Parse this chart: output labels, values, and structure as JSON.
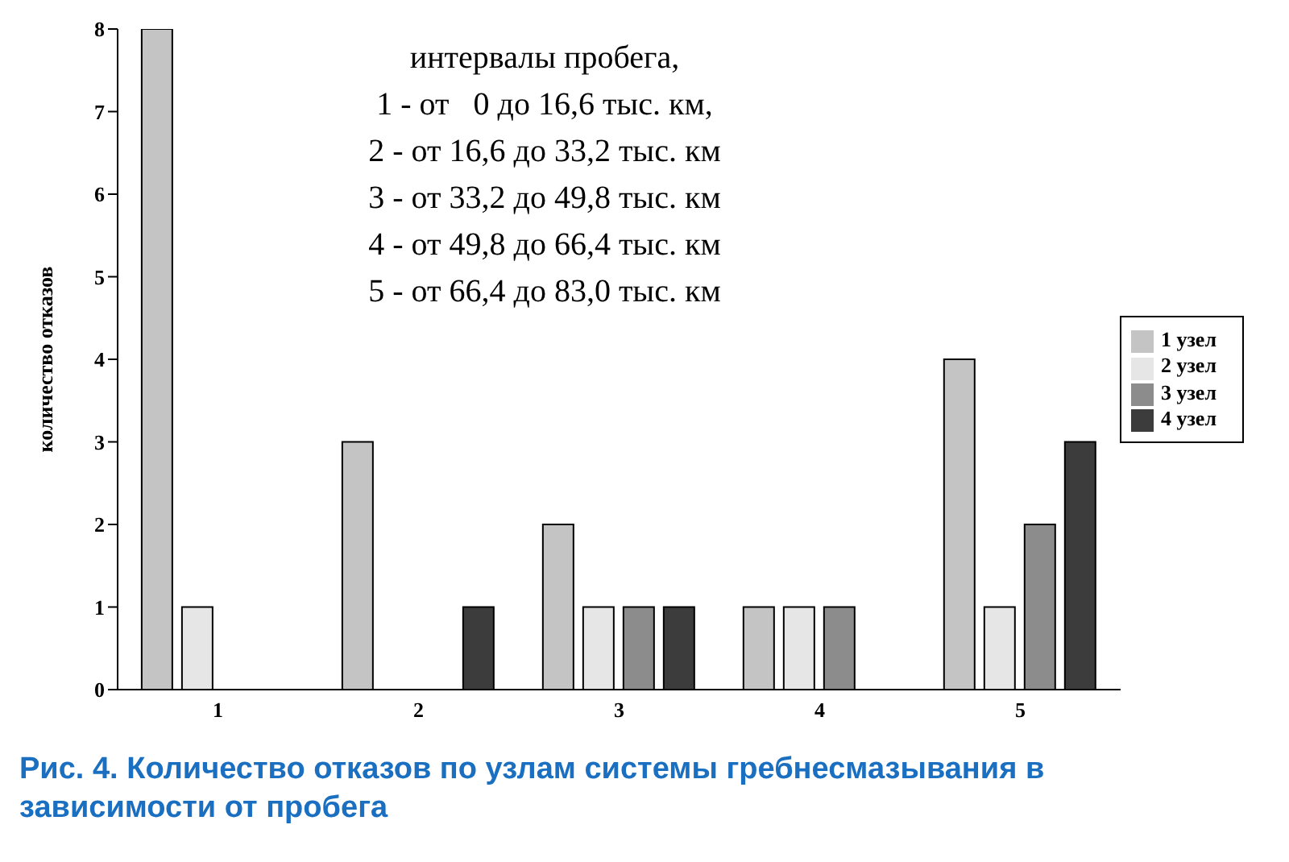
{
  "chart_data": {
    "type": "bar",
    "title": "Рис. 4. Количество отказов по узлам системы гребнесмазывания в зависимости от пробега",
    "ylabel": "количество отказов",
    "categories": [
      "1",
      "2",
      "3",
      "4",
      "5"
    ],
    "series": [
      {
        "name": "1 узел",
        "color": "#c4c4c4",
        "values": [
          8,
          3,
          2,
          1,
          4
        ]
      },
      {
        "name": "2 узел",
        "color": "#e6e6e6",
        "values": [
          1,
          0,
          1,
          1,
          1
        ]
      },
      {
        "name": "3 узел",
        "color": "#8c8c8c",
        "values": [
          0,
          0,
          1,
          1,
          2
        ]
      },
      {
        "name": "4 узел",
        "color": "#3c3c3c",
        "values": [
          0,
          1,
          1,
          0,
          3
        ]
      }
    ],
    "ylim": [
      0,
      8
    ],
    "yticks": [
      0,
      1,
      2,
      3,
      4,
      5,
      6,
      7,
      8
    ],
    "legend": "right",
    "annotations": [
      "интервалы пробега,",
      "1 - от   0 до 16,6 тыс. км,",
      "2 - от 16,6 до 33,2 тыс. км",
      "3 - от 33,2 до 49,8 тыс. км",
      "4 - от 49,8 до 66,4 тыс. км",
      "5 - от 66,4 до 83,0 тыс. км"
    ]
  }
}
